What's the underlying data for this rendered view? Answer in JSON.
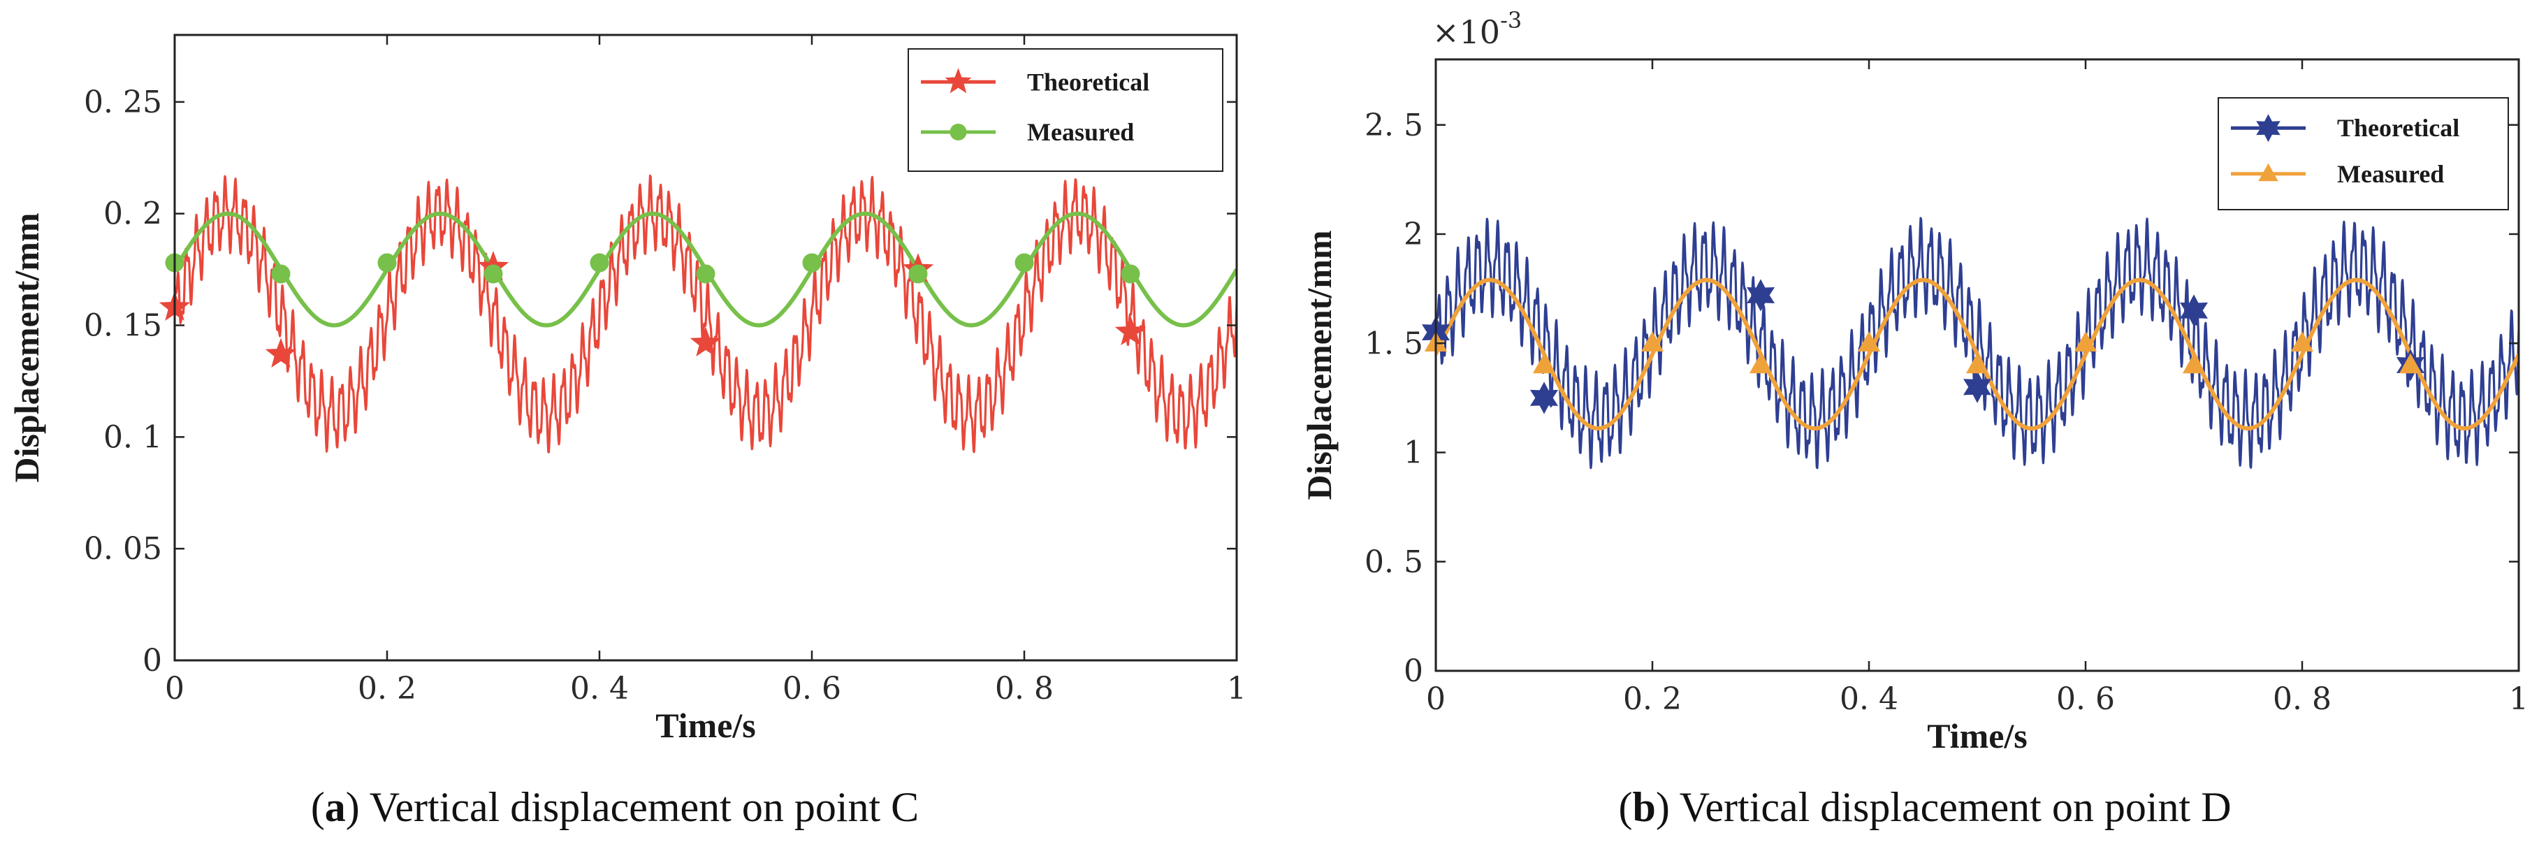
{
  "chart_data": [
    {
      "type": "line",
      "panel": "a",
      "caption_label": "a",
      "caption_text": "Vertical displacement on point C",
      "xlabel": "Time/s",
      "ylabel": "Displacement/mm",
      "xlim": [
        0,
        1
      ],
      "ylim": [
        0,
        0.28
      ],
      "x_ticks": [
        0,
        0.2,
        0.4,
        0.6,
        0.8,
        1
      ],
      "x_tick_labels": [
        "0",
        "0. 2",
        "0. 4",
        "0. 6",
        "0. 8",
        "1"
      ],
      "y_ticks": [
        0,
        0.05,
        0.1,
        0.15,
        0.2,
        0.25
      ],
      "y_tick_labels": [
        "0",
        "0. 05",
        "0. 1",
        "0. 15",
        "0. 2",
        "0. 25"
      ],
      "legend_position": "top-right",
      "series": [
        {
          "name": "Theoretical",
          "color": "#e8473a",
          "marker": "star",
          "model": {
            "mean": 0.155,
            "amp": 0.045,
            "period": 0.2,
            "phase": 0.05,
            "noise_amp": 0.013,
            "noise_freq": 110
          },
          "marker_x": [
            0,
            0.1,
            0.3,
            0.5,
            0.7,
            0.9
          ],
          "marker_y": [
            0.158,
            0.137,
            0.176,
            0.142,
            0.175,
            0.147
          ]
        },
        {
          "name": "Measured",
          "color": "#77c04a",
          "marker": "circle",
          "model": {
            "mean": 0.175,
            "amp": 0.025,
            "period": 0.2,
            "phase": 0.05
          },
          "marker_x": [
            0,
            0.1,
            0.2,
            0.3,
            0.4,
            0.5,
            0.6,
            0.7,
            0.8,
            0.9
          ],
          "marker_y": [
            0.178,
            0.173,
            0.178,
            0.173,
            0.178,
            0.173,
            0.178,
            0.173,
            0.178,
            0.173
          ]
        }
      ]
    },
    {
      "type": "line",
      "panel": "b",
      "caption_label": "b",
      "caption_text": "Vertical displacement on point D",
      "xlabel": "Time/s",
      "ylabel": "Displacement/mm",
      "scale_base": "×10",
      "scale_exp": "-3",
      "xlim": [
        0,
        1
      ],
      "ylim": [
        0,
        2.8
      ],
      "x_ticks": [
        0,
        0.2,
        0.4,
        0.6,
        0.8,
        1
      ],
      "x_tick_labels": [
        "0",
        "0. 2",
        "0. 4",
        "0. 6",
        "0. 8",
        "1"
      ],
      "y_ticks": [
        0,
        0.5,
        1,
        1.5,
        2,
        2.5
      ],
      "y_tick_labels": [
        "0",
        "0. 5",
        "1",
        "1. 5",
        "2",
        "2. 5"
      ],
      "legend_position": "top-right",
      "series": [
        {
          "name": "Theoretical",
          "color": "#2e3f92",
          "marker": "hexstar",
          "model": {
            "mean": 1.5,
            "amp": 0.35,
            "period": 0.2,
            "phase": 0.05,
            "noise_amp": 0.17,
            "noise_freq": 110
          },
          "marker_x": [
            0,
            0.1,
            0.3,
            0.5,
            0.7,
            0.9
          ],
          "marker_y": [
            1.55,
            1.25,
            1.72,
            1.3,
            1.65,
            1.4
          ]
        },
        {
          "name": "Measured",
          "color": "#f0a23a",
          "marker": "triangle",
          "model": {
            "mean": 1.45,
            "amp": 0.34,
            "period": 0.2,
            "phase": 0.05
          },
          "marker_x": [
            0,
            0.1,
            0.2,
            0.3,
            0.4,
            0.5,
            0.6,
            0.7,
            0.8,
            0.9
          ],
          "marker_y": [
            1.5,
            1.4,
            1.5,
            1.4,
            1.5,
            1.4,
            1.5,
            1.4,
            1.5,
            1.4
          ]
        }
      ]
    }
  ]
}
